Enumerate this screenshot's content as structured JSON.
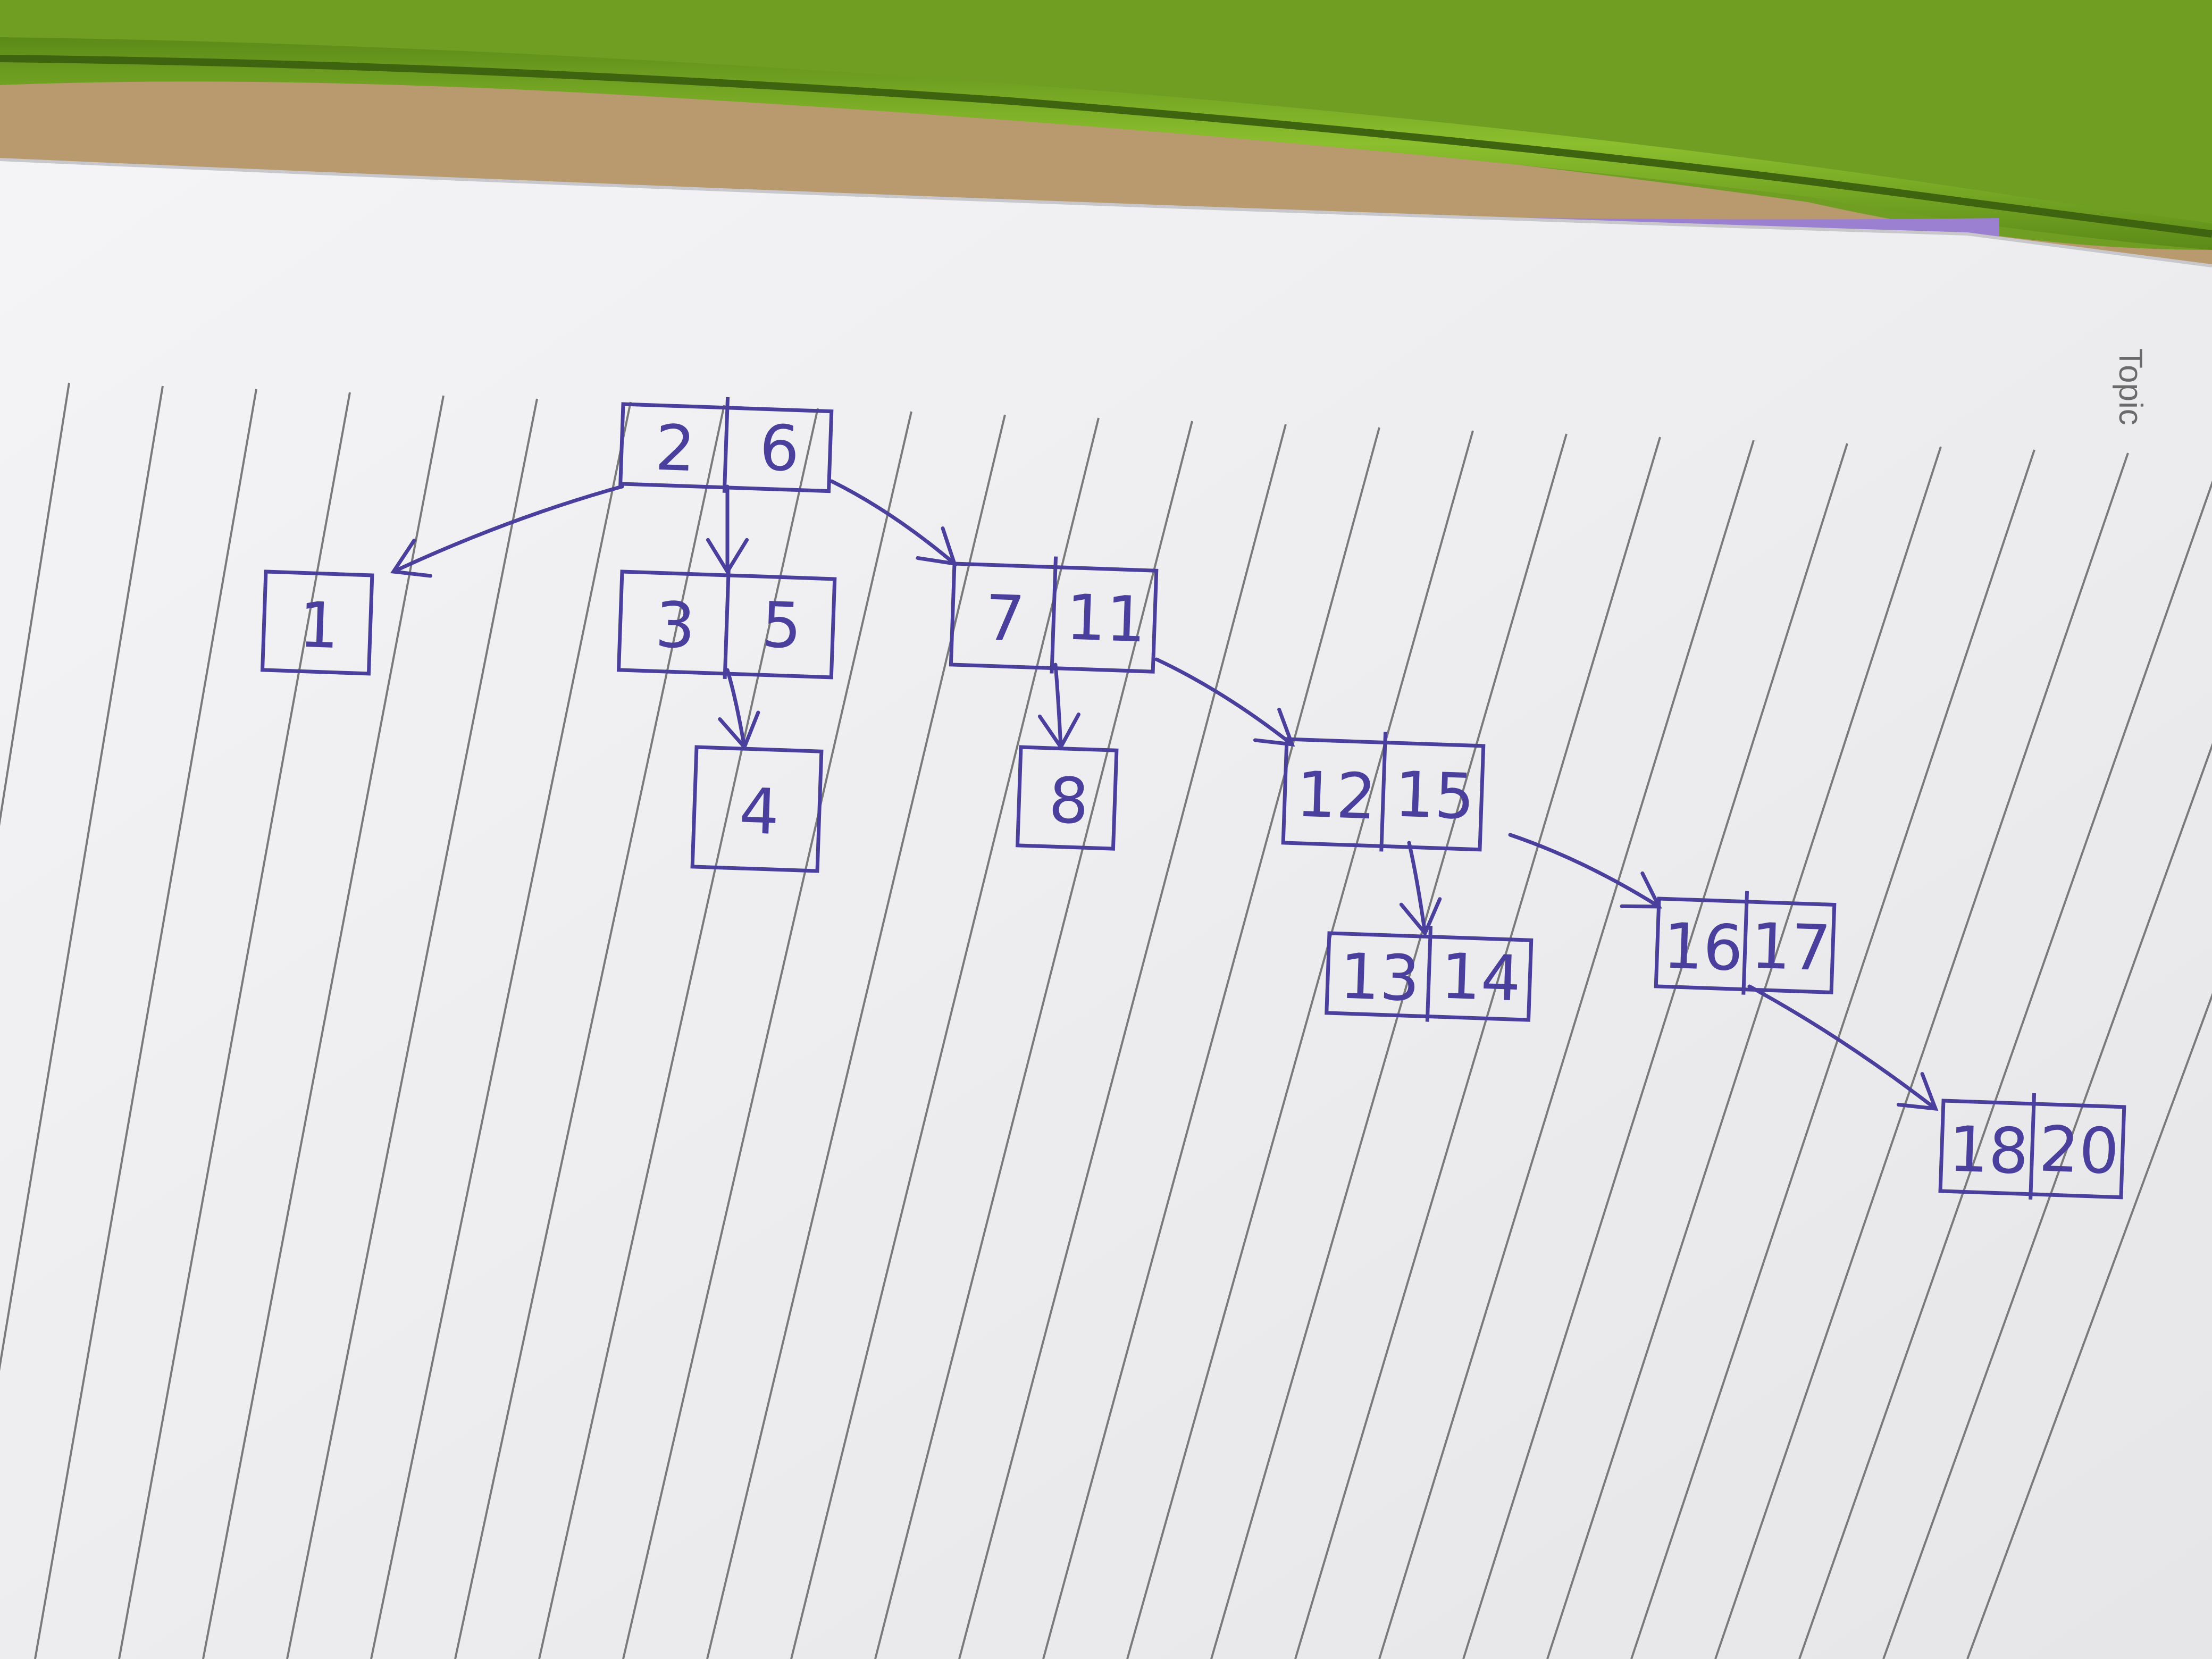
{
  "notebook": {
    "heading": "Topic"
  },
  "colors": {
    "ink": "#4a3f9c",
    "paper": "#f2f2f3",
    "rules": "#7a7a7a",
    "zipper": "#7fae28",
    "desk": "#b89a6e",
    "cover": "#9b7fd0"
  },
  "diagram": {
    "nodes": [
      {
        "id": "n-2-6",
        "keys": [
          "2",
          "6"
        ]
      },
      {
        "id": "n-1",
        "keys": [
          "1"
        ]
      },
      {
        "id": "n-3-5",
        "keys": [
          "3",
          "5"
        ]
      },
      {
        "id": "n-4",
        "keys": [
          "4"
        ]
      },
      {
        "id": "n-7-11",
        "keys": [
          "7",
          "11"
        ]
      },
      {
        "id": "n-8",
        "keys": [
          "8"
        ]
      },
      {
        "id": "n-12-15",
        "keys": [
          "12",
          "15"
        ]
      },
      {
        "id": "n-13-14",
        "keys": [
          "13",
          "14"
        ]
      },
      {
        "id": "n-16-17",
        "keys": [
          "16",
          "17"
        ]
      },
      {
        "id": "n-18-20",
        "keys": [
          "18",
          "20"
        ]
      }
    ],
    "edges": [
      {
        "from": "n-2-6",
        "to": "n-1"
      },
      {
        "from": "n-2-6",
        "to": "n-3-5"
      },
      {
        "from": "n-2-6",
        "to": "n-7-11"
      },
      {
        "from": "n-3-5",
        "to": "n-4"
      },
      {
        "from": "n-7-11",
        "to": "n-8"
      },
      {
        "from": "n-7-11",
        "to": "n-12-15"
      },
      {
        "from": "n-12-15",
        "to": "n-13-14"
      },
      {
        "from": "n-12-15",
        "to": "n-16-17"
      },
      {
        "from": "n-16-17",
        "to": "n-18-20"
      }
    ]
  }
}
